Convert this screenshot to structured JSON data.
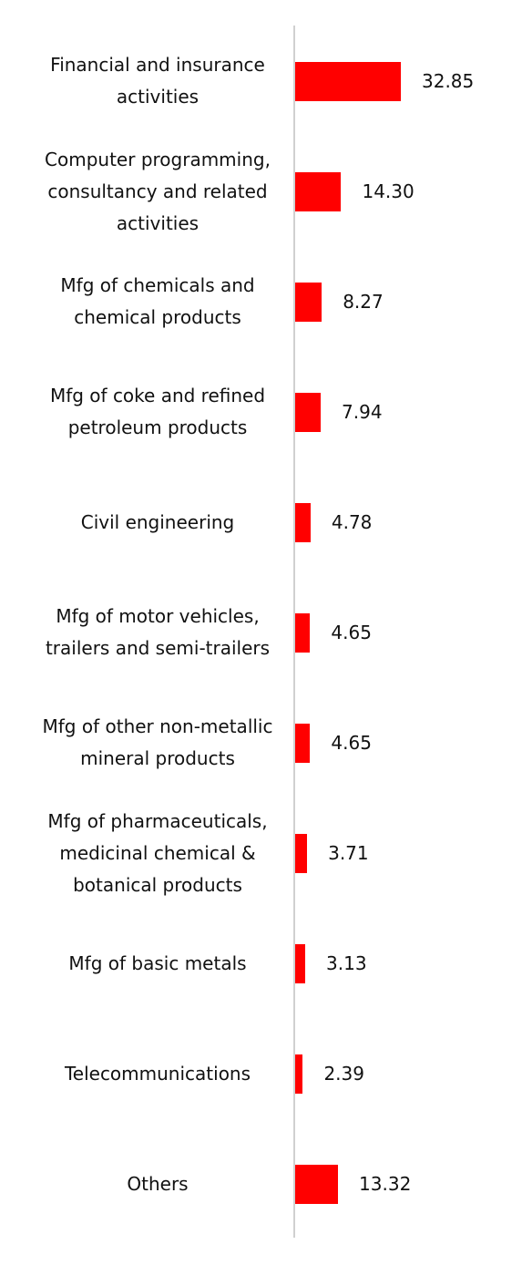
{
  "chart_data": {
    "type": "bar",
    "orientation": "horizontal",
    "color": "#ff0000",
    "categories": [
      "Financial and insurance activities",
      "Computer programming, consultancy and related activities",
      "Mfg of chemicals and chemical products",
      "Mfg of coke and refined petroleum products",
      "Civil engineering",
      "Mfg of motor vehicles, trailers and semi-trailers",
      "Mfg of other non-metallic mineral products",
      "Mfg of pharmaceuticals, medicinal chemical & botanical products",
      "Mfg of basic metals",
      "Telecommunications",
      "Others"
    ],
    "values": [
      32.85,
      14.3,
      8.27,
      7.94,
      4.78,
      4.65,
      4.65,
      3.71,
      3.13,
      2.39,
      13.32
    ],
    "value_labels": [
      "32.85",
      "14.30",
      "8.27",
      "7.94",
      "4.78",
      "4.65",
      "4.65",
      "3.71",
      "3.13",
      "2.39",
      "13.32"
    ]
  }
}
